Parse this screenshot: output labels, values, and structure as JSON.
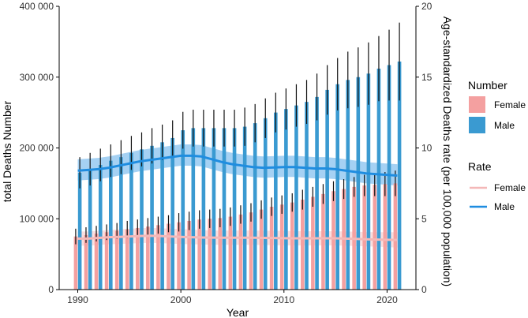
{
  "chart_data": {
    "type": "bar",
    "xlabel": "Year",
    "ylabel_left": "total Deaths Number",
    "ylabel_right": "Age-standardized Deaths rate (per 100,000 population)",
    "x_ticks": [
      1990,
      2000,
      2010,
      2020
    ],
    "y_left_ticks": [
      "0",
      "100 000",
      "200 000",
      "300 000",
      "400 000"
    ],
    "y_left_range": [
      0,
      400000
    ],
    "y_right_ticks": [
      "0",
      "5",
      "10",
      "15",
      "20"
    ],
    "y_right_range": [
      0,
      20
    ],
    "years": [
      1990,
      1991,
      1992,
      1993,
      1994,
      1995,
      1996,
      1997,
      1998,
      1999,
      2000,
      2001,
      2002,
      2003,
      2004,
      2005,
      2006,
      2007,
      2008,
      2009,
      2010,
      2011,
      2012,
      2013,
      2014,
      2015,
      2016,
      2017,
      2018,
      2019,
      2020,
      2021
    ],
    "number_series": [
      {
        "name": "Female",
        "color": "#f4a0a0",
        "values": [
          75000,
          77000,
          79000,
          81000,
          83000,
          85000,
          87000,
          89000,
          91000,
          93000,
          95000,
          97000,
          99000,
          100000,
          101000,
          103000,
          106000,
          109000,
          113000,
          117000,
          120000,
          123000,
          127000,
          131000,
          135000,
          139000,
          142000,
          145000,
          147000,
          148000,
          149000,
          150000
        ],
        "error": [
          11000,
          11000,
          11000,
          11000,
          11000,
          12000,
          12000,
          12000,
          12000,
          12000,
          13000,
          13000,
          13000,
          13000,
          13000,
          13000,
          13000,
          13000,
          13000,
          13000,
          13000,
          13000,
          14000,
          14000,
          14000,
          14000,
          14000,
          14000,
          15000,
          16000,
          17000,
          18000
        ]
      },
      {
        "name": "Male",
        "color": "#3a9ad1",
        "values": [
          165000,
          170000,
          176000,
          182000,
          187000,
          193000,
          198000,
          203000,
          208000,
          214000,
          225000,
          228000,
          228000,
          228000,
          228000,
          228000,
          230000,
          235000,
          242000,
          250000,
          255000,
          260000,
          265000,
          272000,
          282000,
          290000,
          296000,
          300000,
          305000,
          312000,
          317000,
          322000
        ],
        "error": [
          22000,
          23000,
          23000,
          23000,
          24000,
          24000,
          24000,
          25000,
          25000,
          25000,
          26000,
          26000,
          26000,
          26000,
          26000,
          26000,
          27000,
          27000,
          28000,
          28000,
          29000,
          30000,
          31000,
          33000,
          35000,
          37000,
          40000,
          42000,
          44000,
          46000,
          50000,
          55000
        ]
      }
    ],
    "rate_series": [
      {
        "name": "Female",
        "color": "#f4b8b8",
        "values": [
          3.6,
          3.6,
          3.65,
          3.7,
          3.72,
          3.75,
          3.78,
          3.8,
          3.78,
          3.75,
          3.72,
          3.7,
          3.68,
          3.67,
          3.66,
          3.66,
          3.66,
          3.66,
          3.65,
          3.64,
          3.63,
          3.62,
          3.62,
          3.62,
          3.62,
          3.62,
          3.6,
          3.58,
          3.55,
          3.53,
          3.52,
          3.5
        ],
        "lower": [
          3.1,
          3.1,
          3.15,
          3.2,
          3.22,
          3.25,
          3.28,
          3.3,
          3.28,
          3.25,
          3.22,
          3.2,
          3.18,
          3.17,
          3.16,
          3.16,
          3.16,
          3.16,
          3.15,
          3.14,
          3.13,
          3.12,
          3.12,
          3.12,
          3.12,
          3.12,
          3.1,
          3.08,
          3.05,
          3.03,
          3.0,
          2.97
        ],
        "upper": [
          4.1,
          4.1,
          4.15,
          4.2,
          4.25,
          4.3,
          4.33,
          4.35,
          4.33,
          4.3,
          4.27,
          4.24,
          4.2,
          4.18,
          4.17,
          4.17,
          4.17,
          4.17,
          4.16,
          4.15,
          4.14,
          4.13,
          4.12,
          4.12,
          4.12,
          4.12,
          4.1,
          4.08,
          4.06,
          4.05,
          4.05,
          4.05
        ]
      },
      {
        "name": "Male",
        "color": "#1f8de0",
        "values": [
          8.4,
          8.45,
          8.5,
          8.6,
          8.75,
          8.9,
          9.05,
          9.15,
          9.25,
          9.35,
          9.45,
          9.45,
          9.4,
          9.2,
          9.0,
          8.85,
          8.75,
          8.65,
          8.6,
          8.62,
          8.65,
          8.65,
          8.6,
          8.55,
          8.55,
          8.5,
          8.4,
          8.3,
          8.2,
          8.15,
          8.1,
          8.05
        ],
        "lower": [
          7.7,
          7.75,
          7.8,
          7.9,
          8.05,
          8.2,
          8.35,
          8.45,
          8.55,
          8.65,
          8.75,
          8.75,
          8.7,
          8.5,
          8.3,
          8.15,
          8.05,
          7.95,
          7.9,
          7.92,
          7.95,
          7.95,
          7.9,
          7.85,
          7.85,
          7.8,
          7.7,
          7.6,
          7.5,
          7.45,
          7.4,
          7.35
        ],
        "upper": [
          9.2,
          9.25,
          9.3,
          9.4,
          9.55,
          9.7,
          9.85,
          9.95,
          10.05,
          10.15,
          10.25,
          10.25,
          10.2,
          10.0,
          9.8,
          9.65,
          9.55,
          9.45,
          9.4,
          9.42,
          9.45,
          9.45,
          9.4,
          9.35,
          9.35,
          9.3,
          9.2,
          9.1,
          9.0,
          8.95,
          8.9,
          8.85
        ]
      }
    ],
    "legend_number_title": "Number",
    "legend_rate_title": "Rate",
    "legend_placement": "right",
    "grid": false
  }
}
